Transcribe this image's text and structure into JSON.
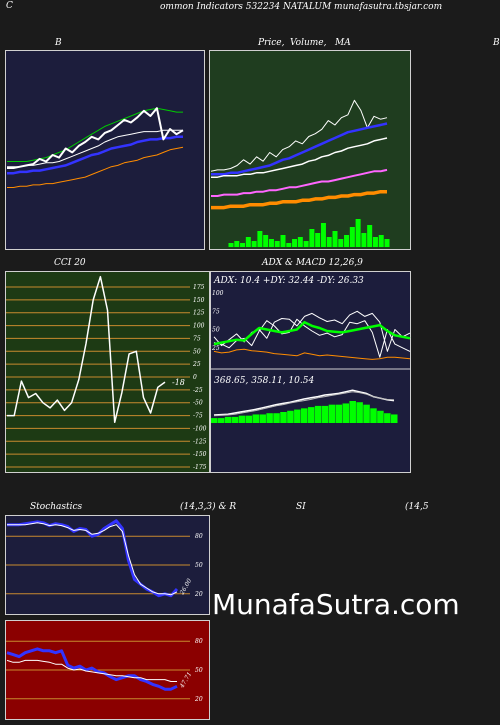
{
  "header": {
    "left_letter": "C",
    "title": "ommon  Indicators 532234  NATALUM munafasutra.tbsjar.com",
    "top_right_letter": "B"
  },
  "panels": {
    "bb": {
      "title": "B"
    },
    "price": {
      "title_a": "Price,",
      "title_b": "Volume,",
      "title_c": "MA"
    },
    "cci": {
      "title": "CCI 20",
      "current_label": "-18"
    },
    "adx": {
      "title": "ADX  & MACD 12,26,9",
      "readout": "ADX: 10.4   +DY: 32.44   -DY: 26.33",
      "macd_readout": "368.65,  358.11,  10.54"
    },
    "stoch": {
      "title_left": "Stochastics",
      "title_right": "(14,3,3) & R",
      "current_label": "26.00"
    },
    "rsi": {
      "title_left": "SI",
      "title_right": "(14,5",
      "current_label": "47.71"
    }
  },
  "watermark": "MunafaSutra.com",
  "colors": {
    "bb_bg": "#1c1d3c",
    "price_bg": "#1f3d1f",
    "cci_bg": "#1d3a14",
    "adx_bg": "#1c1d3c",
    "stoch_bg": "#1c1d3c",
    "rsi_bg": "#8b0000",
    "gridline": "#c88a2e",
    "up": "#00ff00",
    "ma_blue": "#3333ff",
    "ma_orange": "#ff8c00",
    "ma_pink": "#ff66ff"
  },
  "chart_data": [
    {
      "type": "line",
      "name": "bollinger",
      "ylim": [
        0,
        100
      ],
      "series": [
        {
          "name": "",
          "values": [
            41,
            41,
            41,
            42,
            42,
            43,
            44,
            44,
            45,
            47,
            49,
            51,
            53,
            55,
            57,
            60,
            62,
            64,
            65,
            66,
            67,
            68,
            68,
            68,
            69,
            69,
            69,
            69
          ]
        },
        {
          "name": "",
          "values": [
            36,
            36,
            37,
            37,
            38,
            38,
            39,
            40,
            41,
            42,
            44,
            46,
            48,
            50,
            51,
            53,
            55,
            56,
            57,
            58,
            60,
            61,
            62,
            62,
            63,
            63,
            64,
            64
          ]
        },
        {
          "name": "",
          "values": [
            45,
            45,
            45,
            45,
            46,
            47,
            48,
            50,
            52,
            54,
            57,
            60,
            63,
            66,
            69,
            72,
            74,
            76,
            78,
            80,
            82,
            84,
            85,
            86,
            85,
            84,
            83,
            83
          ]
        },
        {
          "name": "",
          "values": [
            25,
            25,
            26,
            26,
            27,
            27,
            28,
            28,
            29,
            30,
            31,
            32,
            33,
            35,
            37,
            39,
            41,
            42,
            44,
            45,
            46,
            48,
            49,
            50,
            52,
            54,
            55,
            56
          ]
        },
        {
          "name": "",
          "values": [
            40,
            40,
            41,
            42,
            43,
            47,
            45,
            50,
            48,
            55,
            52,
            57,
            60,
            64,
            62,
            67,
            69,
            73,
            77,
            75,
            79,
            84,
            80,
            86,
            62,
            70,
            66,
            69
          ]
        }
      ]
    },
    {
      "type": "line",
      "name": "price-volume-ma",
      "ylim": [
        0,
        100
      ],
      "series": [
        {
          "name": "",
          "values": [
            37,
            38,
            38,
            39,
            41,
            45,
            42,
            47,
            44,
            50,
            47,
            52,
            54,
            58,
            56,
            61,
            63,
            66,
            72,
            69,
            74,
            76,
            86,
            79,
            67,
            75,
            73,
            74
          ]
        },
        {
          "name": "",
          "values": [
            35,
            35,
            35,
            36,
            36,
            37,
            38,
            39,
            40,
            41,
            43,
            45,
            46,
            48,
            50,
            52,
            54,
            56,
            58,
            60,
            62,
            64,
            65,
            66,
            67,
            68,
            69,
            70
          ]
        },
        {
          "name": "",
          "values": [
            33,
            33,
            34,
            34,
            34,
            35,
            35,
            36,
            36,
            37,
            38,
            39,
            40,
            41,
            42,
            44,
            45,
            47,
            48,
            50,
            51,
            53,
            54,
            55,
            56,
            58,
            59,
            60
          ]
        },
        {
          "name": "",
          "values": [
            20,
            20,
            21,
            21,
            21,
            22,
            22,
            23,
            23,
            24,
            24,
            25,
            26,
            26,
            27,
            28,
            29,
            30,
            30,
            31,
            32,
            33,
            34,
            35,
            36,
            37,
            37,
            38
          ]
        },
        {
          "name": "",
          "values": [
            12,
            12,
            12,
            13,
            13,
            13,
            14,
            14,
            14,
            15,
            15,
            16,
            16,
            16,
            17,
            17,
            18,
            18,
            19,
            19,
            20,
            20,
            21,
            21,
            22,
            22,
            23,
            23
          ]
        }
      ],
      "volume": [
        2,
        3,
        2,
        5,
        3,
        8,
        6,
        4,
        3,
        6,
        2,
        4,
        5,
        3,
        9,
        7,
        12,
        5,
        8,
        4,
        6,
        10,
        14,
        7,
        11,
        5,
        6,
        4
      ]
    },
    {
      "type": "line",
      "name": "cci",
      "ylim": [
        -175,
        175
      ],
      "yticks": [
        175,
        150,
        125,
        100,
        75,
        50,
        25,
        0,
        -25,
        -50,
        -75,
        -100,
        -125,
        -150,
        -175
      ],
      "values": [
        -75,
        -75,
        -8,
        -40,
        -32,
        -50,
        -60,
        -45,
        -65,
        -50,
        -5,
        65,
        150,
        195,
        130,
        -88,
        -30,
        45,
        50,
        -40,
        -70,
        -20,
        -10
      ]
    },
    {
      "type": "line",
      "name": "adx",
      "ylim": [
        0,
        100
      ],
      "yticks": [
        100,
        75,
        50,
        25
      ],
      "series": [
        {
          "name": "",
          "values": [
            40,
            28,
            36,
            44,
            33,
            46,
            50,
            38,
            60,
            65,
            64,
            55,
            68,
            72,
            66,
            61,
            63,
            58,
            70,
            75,
            68,
            72,
            60,
            20,
            50,
            40,
            45
          ]
        },
        {
          "name": "",
          "values": [
            32,
            30,
            25,
            35,
            38,
            28,
            48,
            62,
            55,
            44,
            46,
            64,
            55,
            48,
            42,
            45,
            40,
            43,
            60,
            58,
            62,
            46,
            12,
            50,
            30,
            25,
            20
          ]
        },
        {
          "name": "",
          "values": [
            30,
            32,
            34,
            36,
            35,
            44,
            52,
            50,
            48,
            46,
            48,
            50,
            60,
            55,
            52,
            48,
            47,
            46,
            48,
            50,
            52,
            54,
            56,
            48,
            42,
            40,
            38
          ]
        },
        {
          "name": "",
          "values": [
            20,
            18,
            19,
            22,
            23,
            21,
            20,
            19,
            17,
            16,
            15,
            14,
            18,
            16,
            14,
            15,
            14,
            13,
            12,
            11,
            10,
            9,
            10,
            12,
            12,
            11,
            10
          ]
        }
      ],
      "macd": {
        "values": [
          20,
          21,
          22,
          25,
          28,
          31,
          34,
          38,
          42,
          46,
          49,
          52,
          56,
          60,
          63,
          66,
          70,
          72,
          74,
          78,
          82,
          78,
          74,
          66,
          62,
          58,
          56
        ],
        "signal": [
          18,
          19,
          20,
          22,
          25,
          28,
          31,
          35,
          39,
          43,
          46,
          50,
          53,
          56,
          59,
          63,
          66,
          69,
          72,
          75,
          78,
          76,
          72,
          66,
          62,
          59,
          58
        ],
        "hist": [
          4,
          4,
          5,
          5,
          6,
          6,
          7,
          7,
          8,
          8,
          9,
          10,
          11,
          12,
          13,
          14,
          14,
          15,
          15,
          16,
          18,
          17,
          15,
          12,
          10,
          8,
          7
        ]
      }
    },
    {
      "type": "line",
      "name": "stochastics",
      "ylim": [
        0,
        100
      ],
      "yticks": [
        80,
        50,
        20
      ],
      "series": [
        {
          "name": "",
          "values": [
            92,
            92,
            92,
            93,
            94,
            95,
            94,
            91,
            93,
            92,
            90,
            85,
            88,
            87,
            80,
            82,
            88,
            92,
            96,
            88,
            55,
            35,
            30,
            25,
            22,
            18,
            20,
            18,
            25
          ]
        },
        {
          "name": "",
          "values": [
            92,
            92,
            92,
            92,
            93,
            94,
            93,
            91,
            92,
            91,
            89,
            86,
            87,
            86,
            82,
            83,
            86,
            90,
            92,
            85,
            60,
            40,
            30,
            26,
            22,
            20,
            20,
            19,
            22
          ]
        }
      ]
    },
    {
      "type": "line",
      "name": "rsi",
      "ylim": [
        0,
        100
      ],
      "yticks": [
        80,
        50,
        20
      ],
      "series": [
        {
          "name": "",
          "values": [
            68,
            66,
            64,
            68,
            70,
            72,
            70,
            70,
            68,
            70,
            55,
            52,
            54,
            50,
            52,
            48,
            47,
            43,
            40,
            42,
            44,
            44,
            40,
            38,
            35,
            33,
            30,
            30,
            33
          ]
        },
        {
          "name": "",
          "values": [
            60,
            58,
            58,
            60,
            60,
            60,
            59,
            58,
            56,
            56,
            52,
            50,
            51,
            49,
            48,
            47,
            46,
            45,
            44,
            44,
            43,
            42,
            42,
            40,
            40,
            40,
            40,
            38,
            38
          ]
        }
      ]
    }
  ]
}
